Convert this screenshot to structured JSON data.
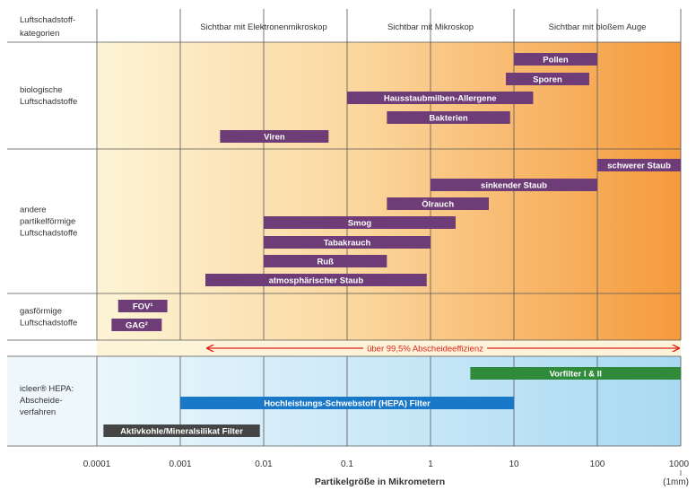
{
  "chart_data": {
    "type": "bar",
    "x_scale": "log",
    "xlabel": "Partikelgröße in Mikrometern",
    "xlim": [
      0.0001,
      1000
    ],
    "x_ticks": [
      "0.0001",
      "0.001",
      "0.01",
      "0.1",
      "1",
      "10",
      "100",
      "1000"
    ],
    "x_end_note": "(1mm)",
    "header_label": "Luftschadstoff-kategorien",
    "visibility_headers": [
      {
        "label": "Sichtbar mit Elektronenmikroskop",
        "range": [
          0.001,
          0.1
        ]
      },
      {
        "label": "Sichtbar mit Mikroskop",
        "range": [
          0.1,
          10
        ]
      },
      {
        "label": "Sichtbar mit bloßem Auge",
        "range": [
          10,
          1000
        ]
      }
    ],
    "groups": [
      {
        "label": "biologische Luftschadstoffe",
        "bars": [
          {
            "name": "Pollen",
            "range": [
              10,
              100
            ]
          },
          {
            "name": "Sporen",
            "range": [
              8,
              80
            ]
          },
          {
            "name": "Hausstaubmilben-Allergene",
            "range": [
              0.1,
              17
            ]
          },
          {
            "name": "Bakterien",
            "range": [
              0.3,
              9
            ]
          },
          {
            "name": "Viren",
            "range": [
              0.003,
              0.06
            ]
          }
        ]
      },
      {
        "label": "andere partikelförmige Luftschadstoffe",
        "bars": [
          {
            "name": "schwerer Staub",
            "range": [
              100,
              1000
            ]
          },
          {
            "name": "sinkender Staub",
            "range": [
              1,
              100
            ]
          },
          {
            "name": "Ölrauch",
            "range": [
              0.3,
              5
            ]
          },
          {
            "name": "Smog",
            "range": [
              0.01,
              2
            ]
          },
          {
            "name": "Tabakrauch",
            "range": [
              0.01,
              1
            ]
          },
          {
            "name": "Ruß",
            "range": [
              0.01,
              0.3
            ]
          },
          {
            "name": "atmosphärischer Staub",
            "range": [
              0.002,
              0.9
            ]
          }
        ]
      },
      {
        "label": "gasförmige Luftschadstoffe",
        "bars": [
          {
            "name": "FOV¹",
            "range": [
              0.00018,
              0.0007
            ]
          },
          {
            "name": "GAG²",
            "range": [
              0.00015,
              0.0006
            ]
          }
        ]
      }
    ],
    "efficiency": {
      "label": "über 99,5% Abscheideeffizienz",
      "range": [
        0.002,
        1000
      ],
      "color": "#e0201b"
    },
    "filter_group": {
      "label": "icleer® HEPA: Abscheide-verfahren",
      "bars": [
        {
          "name": "Vorfilter I & II",
          "range": [
            3,
            1000
          ],
          "color": "#2f8a3a"
        },
        {
          "name": "Hochleistungs-Schwebstoff (HEPA) Filter",
          "range": [
            0.001,
            10
          ],
          "color": "#1a78c8"
        },
        {
          "name": "Aktivkohle/Mineralsilikat Filter",
          "range": [
            0.00012,
            0.009
          ],
          "color": "#454545"
        }
      ]
    },
    "colors": {
      "pollutant_bar": "#6e3d78",
      "upper_gradient": [
        "#fdf4d6",
        "#fbd79e",
        "#f59a3c"
      ],
      "lower_gradient": [
        "#eaf6fc",
        "#a9daf2"
      ],
      "grid": "#555555"
    }
  }
}
